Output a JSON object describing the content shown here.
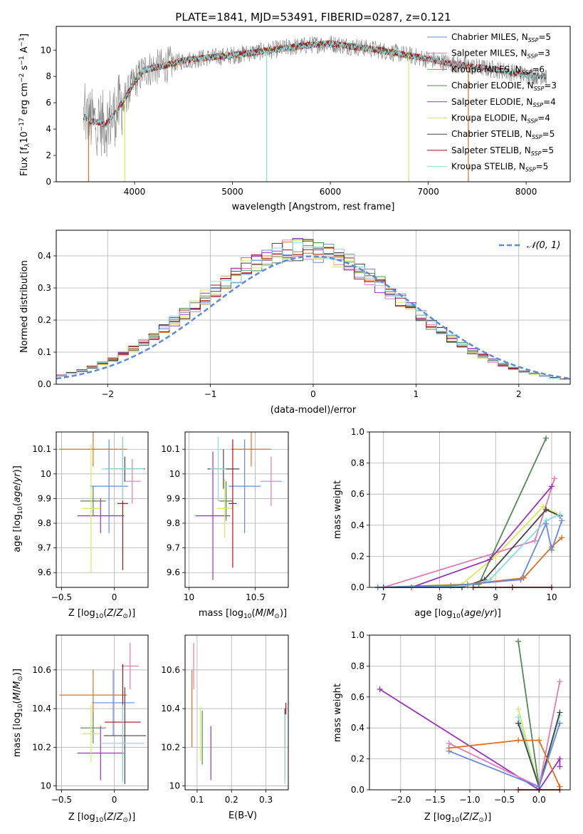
{
  "figure_title": "PLATE=1841, MJD=53491, FIBERID=0287, z=0.121",
  "colors": {
    "Chabrier MILES": "#6688dd",
    "Salpeter MILES": "#e07ab8",
    "Kroupa MILES": "#e07020",
    "Chabrier ELODIE": "#558855",
    "Salpeter ELODIE": "#9933bb",
    "Kroupa ELODIE": "#d8e85a",
    "Chabrier STELIB": "#444444",
    "Salpeter STELIB": "#aa1111",
    "Kroupa STELIB": "#88dddd",
    "data": "#808080",
    "normal": "#5b8bd6",
    "grid": "#b0b0b0"
  },
  "chart_data": [
    {
      "id": "spectrum",
      "type": "line",
      "title": "PLATE=1841, MJD=53491, FIBERID=0287, z=0.121",
      "xlabel": "wavelength [Angstrom, rest frame]",
      "ylabel": "Flux [f_λ 10^-17 erg cm^-2 s^-1 A^-1]",
      "xlim": [
        3200,
        8450
      ],
      "ylim": [
        0,
        11.8
      ],
      "xticks": [
        4000,
        5000,
        6000,
        7000,
        8000
      ],
      "yticks": [
        0,
        2,
        4,
        6,
        8,
        10
      ],
      "grid": false,
      "legend_position": "right",
      "series": [
        {
          "name": "Chabrier MILES, N_SSP=5",
          "label_main": "Chabrier MILES, N",
          "label_sub": "SSP",
          "label_tail": "=5"
        },
        {
          "name": "Salpeter MILES, N_SSP=3",
          "label_main": "Salpeter MILES, N",
          "label_sub": "SSP",
          "label_tail": "=3"
        },
        {
          "name": "Kroupa MILES, N_SSP=6",
          "label_main": "Kroupa MILES, N",
          "label_sub": "SSP",
          "label_tail": "=6"
        },
        {
          "name": "Chabrier ELODIE, N_SSP=3",
          "label_main": "Chabrier ELODIE, N",
          "label_sub": "SSP",
          "label_tail": "=3"
        },
        {
          "name": "Salpeter ELODIE, N_SSP=4",
          "label_main": "Salpeter ELODIE, N",
          "label_sub": "SSP",
          "label_tail": "=4"
        },
        {
          "name": "Kroupa ELODIE, N_SSP=4",
          "label_main": "Kroupa ELODIE, N",
          "label_sub": "SSP",
          "label_tail": "=4"
        },
        {
          "name": "Chabrier STELIB, N_SSP=5",
          "label_main": "Chabrier STELIB, N",
          "label_sub": "SSP",
          "label_tail": "=5"
        },
        {
          "name": "Salpeter STELIB, N_SSP=5",
          "label_main": "Salpeter STELIB, N",
          "label_sub": "SSP",
          "label_tail": "=5"
        },
        {
          "name": "Kroupa STELIB, N_SSP=5",
          "label_main": "Kroupa STELIB, N",
          "label_sub": "SSP",
          "label_tail": "=5"
        }
      ],
      "continuum": {
        "x": [
          3500,
          3550,
          3650,
          3700,
          3800,
          3900,
          4000,
          4100,
          4300,
          4500,
          4700,
          5000,
          5200,
          5500,
          5800,
          6000,
          6200,
          6500,
          6800,
          7000,
          7300,
          7500,
          7800,
          8000,
          8200
        ],
        "y": [
          4.9,
          4.6,
          4.5,
          4.3,
          5.2,
          6.3,
          7.6,
          8.5,
          8.8,
          9.2,
          9.4,
          9.6,
          9.8,
          10.1,
          10.4,
          10.5,
          10.3,
          10.0,
          9.6,
          9.3,
          8.9,
          8.7,
          8.4,
          8.1,
          8.0
        ]
      }
    },
    {
      "id": "residuals",
      "type": "step",
      "xlabel": "(data-model)/error",
      "ylabel": "Normed distribution",
      "xlim": [
        -2.5,
        2.5
      ],
      "ylim": [
        0,
        0.48
      ],
      "xticks": [
        -2,
        -1,
        0,
        1,
        2
      ],
      "xtick_labels": [
        "−2",
        "−1",
        "0",
        "1",
        "2"
      ],
      "yticks": [
        0.0,
        0.1,
        0.2,
        0.3,
        0.4
      ],
      "ytick_labels": [
        "0.0",
        "0.1",
        "0.2",
        "0.3",
        "0.4"
      ],
      "grid": true,
      "legend_position": "top-right",
      "normal_label": "𝒩(0, 1)",
      "bin_width": 0.1,
      "bin_start": -2.5
    },
    {
      "id": "age_vs_Z",
      "type": "errorbar",
      "xlabel": "Z [log10(Z/Z⊙)]",
      "ylabel": "age [log10(age/yr)]",
      "xlim": [
        -0.55,
        0.32
      ],
      "ylim": [
        9.54,
        10.17
      ],
      "xticks": [
        -0.5,
        0.0
      ],
      "yticks": [
        9.6,
        9.7,
        9.8,
        9.9,
        10.0,
        10.1
      ],
      "grid": true,
      "points": [
        {
          "model": "Chabrier MILES",
          "x": -0.05,
          "y": 9.95,
          "xerr": 0.18,
          "yerr": 0.19
        },
        {
          "model": "Salpeter MILES",
          "x": 0.17,
          "y": 9.97,
          "xerr": 0.08,
          "yerr": 0.09
        },
        {
          "model": "Kroupa MILES",
          "x": -0.2,
          "y": 10.1,
          "xerr": 0.32,
          "yerr": 0.07
        },
        {
          "model": "Chabrier ELODIE",
          "x": -0.2,
          "y": 9.89,
          "xerr": 0.12,
          "yerr": 0.06
        },
        {
          "model": "Salpeter ELODIE",
          "x": -0.13,
          "y": 9.83,
          "xerr": 0.22,
          "yerr": 0.07
        },
        {
          "model": "Kroupa ELODIE",
          "x": -0.22,
          "y": 9.86,
          "xerr": 0.08,
          "yerr": 0.26
        },
        {
          "model": "Chabrier STELIB",
          "x": 0.1,
          "y": 10.02,
          "xerr": 0.19,
          "yerr": 0.05
        },
        {
          "model": "Salpeter STELIB",
          "x": 0.08,
          "y": 9.88,
          "xerr": 0.05,
          "yerr": 0.27
        },
        {
          "model": "Kroupa STELIB",
          "x": 0.08,
          "y": 10.02,
          "xerr": 0.2,
          "yerr": 0.13
        }
      ]
    },
    {
      "id": "age_vs_mass",
      "type": "errorbar",
      "xlabel": "mass [log10(M/M⊙)]",
      "ylabel": "",
      "xlim": [
        9.97,
        10.75
      ],
      "ylim": [
        9.54,
        10.17
      ],
      "xticks": [
        10.0,
        10.5
      ],
      "yticks": [
        9.6,
        9.7,
        9.8,
        9.9,
        10.0,
        10.1
      ],
      "grid": true,
      "points": [
        {
          "model": "Chabrier MILES",
          "x": 10.42,
          "y": 9.95,
          "xerr": 0.12,
          "yerr": 0.19
        },
        {
          "model": "Salpeter MILES",
          "x": 10.62,
          "y": 9.97,
          "xerr": 0.08,
          "yerr": 0.1
        },
        {
          "model": "Kroupa MILES",
          "x": 10.47,
          "y": 10.1,
          "xerr": 0.15,
          "yerr": 0.07
        },
        {
          "model": "Chabrier ELODIE",
          "x": 10.28,
          "y": 9.89,
          "xerr": 0.05,
          "yerr": 0.08
        },
        {
          "model": "Salpeter ELODIE",
          "x": 10.18,
          "y": 9.83,
          "xerr": 0.13,
          "yerr": 0.26
        },
        {
          "model": "Kroupa ELODIE",
          "x": 10.27,
          "y": 9.86,
          "xerr": 0.06,
          "yerr": 0.12
        },
        {
          "model": "Chabrier STELIB",
          "x": 10.26,
          "y": 10.02,
          "xerr": 0.12,
          "yerr": 0.08
        },
        {
          "model": "Salpeter STELIB",
          "x": 10.33,
          "y": 9.88,
          "xerr": 0.03,
          "yerr": 0.26
        },
        {
          "model": "Kroupa STELIB",
          "x": 10.22,
          "y": 10.02,
          "xerr": 0.06,
          "yerr": 0.13
        }
      ]
    },
    {
      "id": "weight_vs_age",
      "type": "line",
      "xlabel": "age [log10(age/yr)]",
      "ylabel": "mass weight",
      "xlim": [
        6.75,
        10.33
      ],
      "ylim": [
        0,
        1.0
      ],
      "xticks": [
        7,
        8,
        9,
        10
      ],
      "yticks": [
        0.0,
        0.2,
        0.4,
        0.6,
        0.8,
        1.0
      ],
      "ytick_labels": [
        "0.0",
        "0.2",
        "0.4",
        "0.6",
        "0.8",
        "1.0"
      ],
      "grid": true,
      "series": [
        {
          "model": "Kroupa ELODIE",
          "x": [
            6.9,
            8.4,
            9.0,
            9.85,
            10.05
          ],
          "y": [
            0.0,
            0.02,
            0.2,
            0.52,
            0.48
          ]
        },
        {
          "model": "Salpeter MILES",
          "x": [
            7.0,
            9.7,
            10.05
          ],
          "y": [
            0.0,
            0.3,
            0.7
          ]
        },
        {
          "model": "Chabrier ELODIE",
          "x": [
            6.9,
            8.7,
            9.9
          ],
          "y": [
            0.0,
            0.02,
            0.96
          ]
        },
        {
          "model": "Salpeter ELODIE",
          "x": [
            7.0,
            7.5,
            8.9,
            10.0
          ],
          "y": [
            0.0,
            0.0,
            0.18,
            0.65
          ]
        },
        {
          "model": "Chabrier STELIB",
          "x": [
            6.9,
            8.4,
            8.8,
            9.9,
            10.15
          ],
          "y": [
            0.0,
            0.0,
            0.05,
            0.5,
            0.46
          ]
        },
        {
          "model": "Kroupa STELIB",
          "x": [
            6.9,
            8.5,
            8.9,
            9.9,
            10.15
          ],
          "y": [
            0.0,
            0.01,
            0.05,
            0.43,
            0.47
          ]
        },
        {
          "model": "Kroupa MILES",
          "x": [
            7.5,
            8.5,
            9.5,
            10.0,
            10.18
          ],
          "y": [
            0.0,
            0.02,
            0.06,
            0.26,
            0.32
          ]
        },
        {
          "model": "Chabrier MILES",
          "x": [
            6.9,
            8.2,
            9.45,
            9.9,
            10.0,
            10.18
          ],
          "y": [
            0.0,
            0.01,
            0.05,
            0.41,
            0.24,
            0.43
          ]
        },
        {
          "model": "Salpeter STELIB",
          "x": [
            8.6,
            9.3,
            10.0
          ],
          "y": [
            0.0,
            0.0,
            0.0
          ]
        }
      ]
    },
    {
      "id": "mass_vs_Z",
      "type": "errorbar",
      "xlabel": "Z [log10(Z/Z⊙)]",
      "ylabel": "mass [log10(M/M⊙)]",
      "xlim": [
        -0.55,
        0.32
      ],
      "ylim": [
        9.98,
        10.78
      ],
      "xticks": [
        -0.5,
        0.0
      ],
      "yticks": [
        10.0,
        10.2,
        10.4,
        10.6
      ],
      "grid": true,
      "points": [
        {
          "model": "Chabrier MILES",
          "x": -0.01,
          "y": 10.43,
          "xerr": 0.2,
          "yerr": 0.17
        },
        {
          "model": "Salpeter MILES",
          "x": 0.15,
          "y": 10.62,
          "xerr": 0.08,
          "yerr": 0.12
        },
        {
          "model": "Kroupa MILES",
          "x": -0.2,
          "y": 10.47,
          "xerr": 0.32,
          "yerr": 0.13
        },
        {
          "model": "Chabrier ELODIE",
          "x": -0.2,
          "y": 10.3,
          "xerr": 0.12,
          "yerr": 0.08
        },
        {
          "model": "Salpeter ELODIE",
          "x": -0.13,
          "y": 10.17,
          "xerr": 0.22,
          "yerr": 0.14
        },
        {
          "model": "Kroupa ELODIE",
          "x": -0.22,
          "y": 10.27,
          "xerr": 0.08,
          "yerr": 0.15
        },
        {
          "model": "Chabrier STELIB",
          "x": 0.1,
          "y": 10.26,
          "xerr": 0.2,
          "yerr": 0.25
        },
        {
          "model": "Salpeter STELIB",
          "x": 0.08,
          "y": 10.33,
          "xerr": 0.17,
          "yerr": 0.3
        },
        {
          "model": "Kroupa STELIB",
          "x": 0.08,
          "y": 10.22,
          "xerr": 0.2,
          "yerr": 0.2
        }
      ]
    },
    {
      "id": "mass_vs_EBV",
      "type": "errorbar",
      "xlabel": "E(B-V)",
      "ylabel": "",
      "xlim": [
        0.065,
        0.365
      ],
      "ylim": [
        9.98,
        10.78
      ],
      "xticks": [
        0.1,
        0.2,
        0.3
      ],
      "yticks": [
        10.0,
        10.2,
        10.4,
        10.6
      ],
      "grid": true,
      "points": [
        {
          "model": "Chabrier MILES",
          "x": 0.355,
          "y": 10.2,
          "xerr": 0.0,
          "yerr": 0.17
        },
        {
          "model": "Salpeter MILES",
          "x": 0.09,
          "y": 10.62,
          "xerr": 0.0,
          "yerr": 0.12
        },
        {
          "model": "Kroupa MILES",
          "x": 0.085,
          "y": 10.4,
          "xerr": 0.0,
          "yerr": 0.2
        },
        {
          "model": "Chabrier ELODIE",
          "x": 0.115,
          "y": 10.25,
          "xerr": 0.0,
          "yerr": 0.14
        },
        {
          "model": "Salpeter ELODIE",
          "x": 0.14,
          "y": 10.17,
          "xerr": 0.0,
          "yerr": 0.14
        },
        {
          "model": "Kroupa ELODIE",
          "x": 0.11,
          "y": 10.27,
          "xerr": 0.0,
          "yerr": 0.14
        },
        {
          "model": "Chabrier STELIB",
          "x": 0.355,
          "y": 10.3,
          "xerr": 0.0,
          "yerr": 0.1
        },
        {
          "model": "Salpeter STELIB",
          "x": 0.358,
          "y": 10.4,
          "xerr": 0.0,
          "yerr": 0.03
        },
        {
          "model": "Kroupa STELIB",
          "x": 0.355,
          "y": 10.19,
          "xerr": 0.0,
          "yerr": 0.18
        }
      ]
    },
    {
      "id": "weight_vs_Z",
      "type": "line",
      "xlabel": "Z [log10(Z/Z⊙)]",
      "ylabel": "mass weight",
      "xlim": [
        -2.45,
        0.45
      ],
      "ylim": [
        0,
        1.0
      ],
      "xticks": [
        -2.0,
        -1.5,
        -1.0,
        -0.5,
        0.0
      ],
      "xtick_labels": [
        "−2.0",
        "−1.5",
        "−1.0",
        "−0.5",
        "0.0"
      ],
      "yticks": [
        0.0,
        0.2,
        0.4,
        0.6,
        0.8,
        1.0
      ],
      "ytick_labels": [
        "0.0",
        "0.2",
        "0.4",
        "0.6",
        "0.8",
        "1.0"
      ],
      "grid": true,
      "series": [
        {
          "model": "Salpeter ELODIE",
          "x": [
            -2.3,
            0.0,
            0.3,
            0.3
          ],
          "y": [
            0.65,
            0.0,
            0.2,
            0.15
          ]
        },
        {
          "model": "Chabrier ELODIE",
          "x": [
            -0.3,
            0.0
          ],
          "y": [
            0.96,
            0.02
          ]
        },
        {
          "model": "Kroupa ELODIE",
          "x": [
            -0.3,
            0.0
          ],
          "y": [
            0.52,
            0.02
          ]
        },
        {
          "model": "Kroupa STELIB",
          "x": [
            -0.3,
            0.0,
            0.3
          ],
          "y": [
            0.47,
            0.02,
            0.48
          ]
        },
        {
          "model": "Chabrier STELIB",
          "x": [
            -0.3,
            0.0,
            0.3
          ],
          "y": [
            0.43,
            0.02,
            0.5
          ]
        },
        {
          "model": "Salpeter MILES",
          "x": [
            -1.3,
            0.0,
            0.3
          ],
          "y": [
            0.3,
            0.02,
            0.7
          ]
        },
        {
          "model": "Chabrier MILES",
          "x": [
            -1.3,
            0.0,
            0.3
          ],
          "y": [
            0.25,
            0.02,
            0.43
          ]
        },
        {
          "model": "Kroupa MILES",
          "x": [
            -1.3,
            -0.3,
            0.0,
            0.3
          ],
          "y": [
            0.27,
            0.32,
            0.32,
            0.02
          ]
        },
        {
          "model": "Salpeter STELIB",
          "x": [
            -0.3,
            0.0,
            0.3
          ],
          "y": [
            0.0,
            0.0,
            0.0
          ]
        }
      ]
    }
  ]
}
